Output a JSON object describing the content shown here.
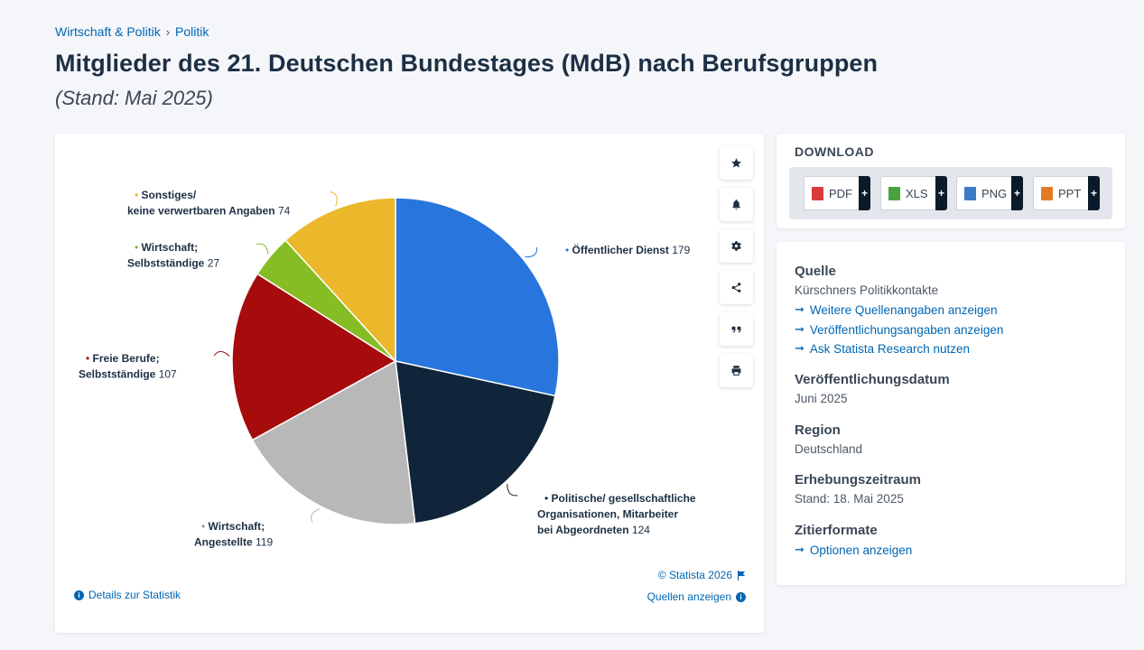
{
  "breadcrumb": {
    "items": [
      "Wirtschaft & Politik",
      "Politik"
    ],
    "separator": "›"
  },
  "title": "Mitglieder des 21. Deutschen Bundestages (MdB) nach Berufsgruppen",
  "subtitle": "(Stand: Mai 2025)",
  "chart_data": {
    "type": "pie",
    "slices": [
      {
        "label_lines": [
          "Öffentlicher Dienst"
        ],
        "value": 179,
        "color": "#2876dd"
      },
      {
        "label_lines": [
          "Politische/ gesellschaftliche",
          "Organisationen, Mitarbeiter",
          "bei Abgeordneten"
        ],
        "value": 124,
        "color": "#10253a"
      },
      {
        "label_lines": [
          "Wirtschaft;",
          "Angestellte"
        ],
        "value": 119,
        "color": "#b8b8b8"
      },
      {
        "label_lines": [
          "Freie Berufe;",
          "Selbstständige"
        ],
        "value": 107,
        "color": "#a60c0c"
      },
      {
        "label_lines": [
          "Wirtschaft;",
          "Selbstständige"
        ],
        "value": 27,
        "color": "#86bc24"
      },
      {
        "label_lines": [
          "Sonstiges/",
          "keine verwertbaren Angaben"
        ],
        "value": 74,
        "color": "#ebb72b"
      }
    ]
  },
  "chart_footer": {
    "copyright": "© Statista 2026",
    "details": "Details zur Statistik",
    "sources": "Quellen anzeigen"
  },
  "tools": [
    "star-icon",
    "bell-icon",
    "gear-icon",
    "share-icon",
    "quote-icon",
    "print-icon"
  ],
  "download": {
    "title": "DOWNLOAD",
    "buttons": [
      {
        "label": "PDF",
        "color": "#d83b3b"
      },
      {
        "label": "XLS",
        "color": "#4aa33c"
      },
      {
        "label": "PNG",
        "color": "#3d7bc7"
      },
      {
        "label": "PPT",
        "color": "#e07b26"
      }
    ],
    "plus": "+"
  },
  "info": {
    "source_heading": "Quelle",
    "source_value": "Kürschners Politikkontakte",
    "source_links": [
      "Weitere Quellenangaben anzeigen",
      "Veröffentlichungsangaben anzeigen",
      "Ask Statista Research nutzen"
    ],
    "pubdate_heading": "Veröffentlichungsdatum",
    "pubdate_value": "Juni 2025",
    "region_heading": "Region",
    "region_value": "Deutschland",
    "period_heading": "Erhebungszeitraum",
    "period_value": "Stand: 18. Mai 2025",
    "cite_heading": "Zitierformate",
    "cite_link": "Optionen anzeigen",
    "arrow": "➞"
  }
}
